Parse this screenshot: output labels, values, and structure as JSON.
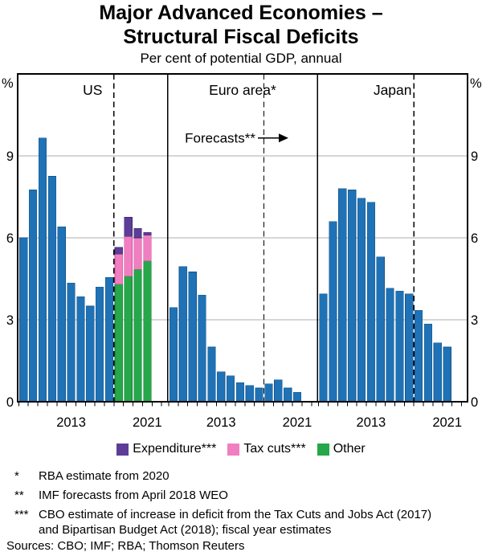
{
  "title_line1": "Major Advanced Economies –",
  "title_line2": "Structural Fiscal Deficits",
  "subtitle": "Per cent of potential GDP, annual",
  "annotation": {
    "text": "Forecasts**"
  },
  "legend": [
    {
      "series": "expenditure",
      "label": "Expenditure***"
    },
    {
      "series": "tax_cuts",
      "label": "Tax cuts***"
    },
    {
      "series": "other",
      "label": "Other"
    }
  ],
  "series_colors": {
    "deficit": {
      "fill": "#1F72B5",
      "stroke": "#15568C"
    },
    "other": {
      "fill": "#25A74A",
      "stroke": "#0F7A32"
    },
    "tax_cuts": {
      "fill": "#F17EC1",
      "stroke": "#C94F97"
    },
    "expenditure": {
      "fill": "#5C3D97",
      "stroke": "#3E2870"
    }
  },
  "style_colors": {
    "grid": "#ADADAD",
    "frame": "#000000"
  },
  "chart_data": {
    "type": "bar",
    "stacked": true,
    "unit": "%",
    "ylim": [
      0,
      12
    ],
    "yticks": [
      0,
      3,
      6,
      9
    ],
    "grid": true,
    "years": [
      2008,
      2009,
      2010,
      2011,
      2012,
      2013,
      2014,
      2015,
      2016,
      2017,
      2018,
      2019,
      2020,
      2021
    ],
    "xticks": [
      {
        "year": 2013,
        "label": "2013"
      },
      {
        "year": 2021,
        "label": "2021"
      }
    ],
    "forecast_from": 2018,
    "panels": [
      {
        "label": "US",
        "bars": [
          {
            "year": 2008,
            "segments": [
              [
                "deficit",
                6.0
              ]
            ]
          },
          {
            "year": 2009,
            "segments": [
              [
                "deficit",
                7.75
              ]
            ]
          },
          {
            "year": 2010,
            "segments": [
              [
                "deficit",
                9.65
              ]
            ]
          },
          {
            "year": 2011,
            "segments": [
              [
                "deficit",
                8.25
              ]
            ]
          },
          {
            "year": 2012,
            "segments": [
              [
                "deficit",
                6.4
              ]
            ]
          },
          {
            "year": 2013,
            "segments": [
              [
                "deficit",
                4.35
              ]
            ]
          },
          {
            "year": 2014,
            "segments": [
              [
                "deficit",
                3.85
              ]
            ]
          },
          {
            "year": 2015,
            "segments": [
              [
                "deficit",
                3.5
              ]
            ]
          },
          {
            "year": 2016,
            "segments": [
              [
                "deficit",
                4.2
              ]
            ]
          },
          {
            "year": 2017,
            "segments": [
              [
                "deficit",
                4.55
              ]
            ]
          },
          {
            "year": 2018,
            "segments": [
              [
                "other",
                4.3
              ],
              [
                "tax_cuts",
                1.1
              ],
              [
                "expenditure",
                0.25
              ]
            ]
          },
          {
            "year": 2019,
            "segments": [
              [
                "other",
                4.6
              ],
              [
                "tax_cuts",
                1.45
              ],
              [
                "expenditure",
                0.7
              ]
            ]
          },
          {
            "year": 2020,
            "segments": [
              [
                "other",
                4.85
              ],
              [
                "tax_cuts",
                1.15
              ],
              [
                "expenditure",
                0.35
              ]
            ]
          },
          {
            "year": 2021,
            "segments": [
              [
                "other",
                5.15
              ],
              [
                "tax_cuts",
                0.95
              ],
              [
                "expenditure",
                0.1
              ]
            ]
          }
        ]
      },
      {
        "label": "Euro area*",
        "bars": [
          {
            "year": 2008,
            "segments": [
              [
                "deficit",
                3.45
              ]
            ]
          },
          {
            "year": 2009,
            "segments": [
              [
                "deficit",
                4.95
              ]
            ]
          },
          {
            "year": 2010,
            "segments": [
              [
                "deficit",
                4.75
              ]
            ]
          },
          {
            "year": 2011,
            "segments": [
              [
                "deficit",
                3.9
              ]
            ]
          },
          {
            "year": 2012,
            "segments": [
              [
                "deficit",
                2.0
              ]
            ]
          },
          {
            "year": 2013,
            "segments": [
              [
                "deficit",
                1.1
              ]
            ]
          },
          {
            "year": 2014,
            "segments": [
              [
                "deficit",
                0.95
              ]
            ]
          },
          {
            "year": 2015,
            "segments": [
              [
                "deficit",
                0.7
              ]
            ]
          },
          {
            "year": 2016,
            "segments": [
              [
                "deficit",
                0.6
              ]
            ]
          },
          {
            "year": 2017,
            "segments": [
              [
                "deficit",
                0.5
              ]
            ]
          },
          {
            "year": 2018,
            "segments": [
              [
                "deficit",
                0.65
              ]
            ]
          },
          {
            "year": 2019,
            "segments": [
              [
                "deficit",
                0.8
              ]
            ]
          },
          {
            "year": 2020,
            "segments": [
              [
                "deficit",
                0.5
              ]
            ]
          },
          {
            "year": 2021,
            "segments": [
              [
                "deficit",
                0.35
              ]
            ]
          }
        ]
      },
      {
        "label": "Japan",
        "bars": [
          {
            "year": 2008,
            "segments": [
              [
                "deficit",
                3.95
              ]
            ]
          },
          {
            "year": 2009,
            "segments": [
              [
                "deficit",
                6.6
              ]
            ]
          },
          {
            "year": 2010,
            "segments": [
              [
                "deficit",
                7.8
              ]
            ]
          },
          {
            "year": 2011,
            "segments": [
              [
                "deficit",
                7.75
              ]
            ]
          },
          {
            "year": 2012,
            "segments": [
              [
                "deficit",
                7.45
              ]
            ]
          },
          {
            "year": 2013,
            "segments": [
              [
                "deficit",
                7.3
              ]
            ]
          },
          {
            "year": 2014,
            "segments": [
              [
                "deficit",
                5.3
              ]
            ]
          },
          {
            "year": 2015,
            "segments": [
              [
                "deficit",
                4.15
              ]
            ]
          },
          {
            "year": 2016,
            "segments": [
              [
                "deficit",
                4.05
              ]
            ]
          },
          {
            "year": 2017,
            "segments": [
              [
                "deficit",
                3.95
              ]
            ]
          },
          {
            "year": 2018,
            "segments": [
              [
                "deficit",
                3.35
              ]
            ]
          },
          {
            "year": 2019,
            "segments": [
              [
                "deficit",
                2.85
              ]
            ]
          },
          {
            "year": 2020,
            "segments": [
              [
                "deficit",
                2.15
              ]
            ]
          },
          {
            "year": 2021,
            "segments": [
              [
                "deficit",
                2.0
              ]
            ]
          }
        ]
      }
    ]
  },
  "footnotes": [
    {
      "marker": "*",
      "text": "RBA estimate from 2020"
    },
    {
      "marker": "**",
      "text": "IMF forecasts from April 2018 WEO"
    },
    {
      "marker": "***",
      "text": "CBO estimate of increase in deficit from the Tax Cuts and Jobs Act (2017) and Bipartisan Budget Act (2018); fiscal year estimates"
    }
  ],
  "sources": "Sources: CBO; IMF; RBA; Thomson Reuters"
}
